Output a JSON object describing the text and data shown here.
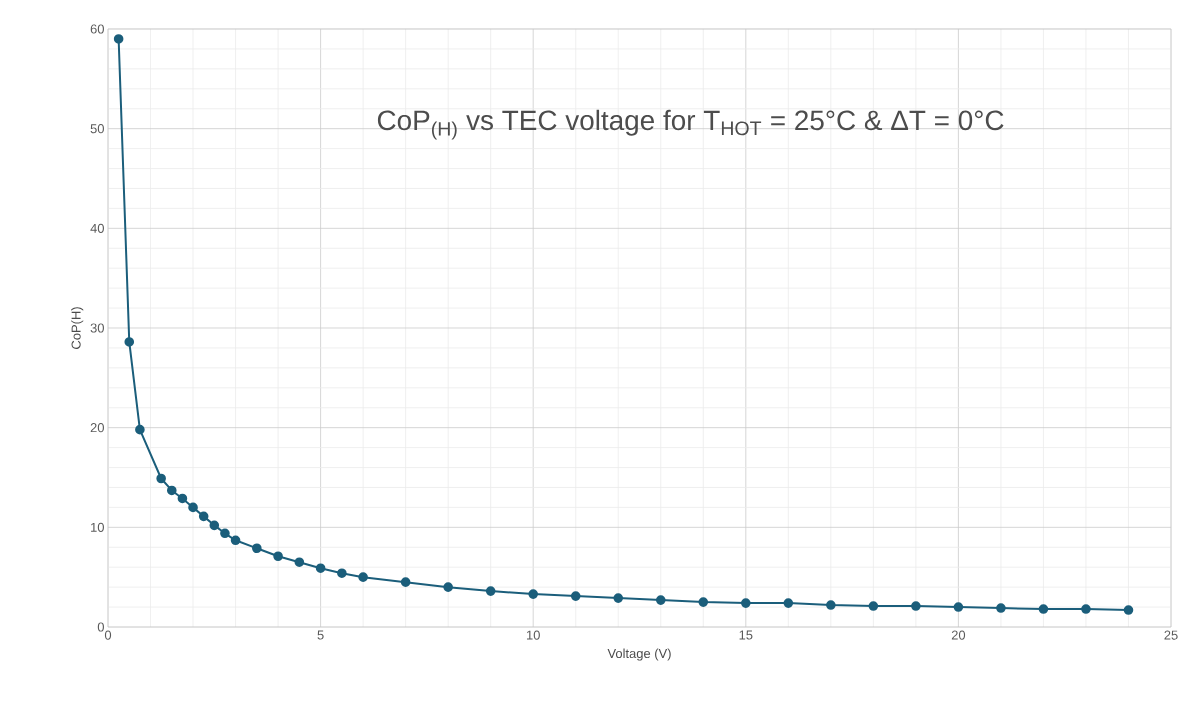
{
  "chart_data": {
    "type": "line",
    "title": "CoP$_{(H)}$ vs TEC voltage for T$_{HOT}$ = 25°C & ΔT = 0°C",
    "xlabel": "Voltage (V)",
    "ylabel": "CoP(H)",
    "x": [
      0.25,
      0.5,
      0.75,
      1.25,
      1.5,
      1.75,
      2,
      2.25,
      2.5,
      2.75,
      3,
      3.5,
      4,
      4.5,
      5,
      5.5,
      6,
      7,
      8,
      9,
      10,
      11,
      12,
      13,
      14,
      15,
      16,
      17,
      18,
      19,
      20,
      21,
      22,
      23,
      24
    ],
    "series": [
      {
        "color": "#1b5e7b",
        "values": [
          59.0,
          28.6,
          19.8,
          14.9,
          13.7,
          12.9,
          12.0,
          11.1,
          10.2,
          9.4,
          8.7,
          7.9,
          7.1,
          6.5,
          5.9,
          5.4,
          5.0,
          4.5,
          4.0,
          3.6,
          3.3,
          3.1,
          2.9,
          2.7,
          2.5,
          2.4,
          2.4,
          2.2,
          2.1,
          2.1,
          2.0,
          1.9,
          1.8,
          1.8,
          1.7
        ]
      }
    ],
    "xlim": [
      0,
      25
    ],
    "ylim": [
      0,
      60
    ],
    "xticks": [
      0,
      5,
      10,
      15,
      20,
      25
    ],
    "yticks": [
      0,
      10,
      20,
      30,
      40,
      50,
      60
    ],
    "grid": true,
    "marker": "circle",
    "line_style": "solid"
  }
}
